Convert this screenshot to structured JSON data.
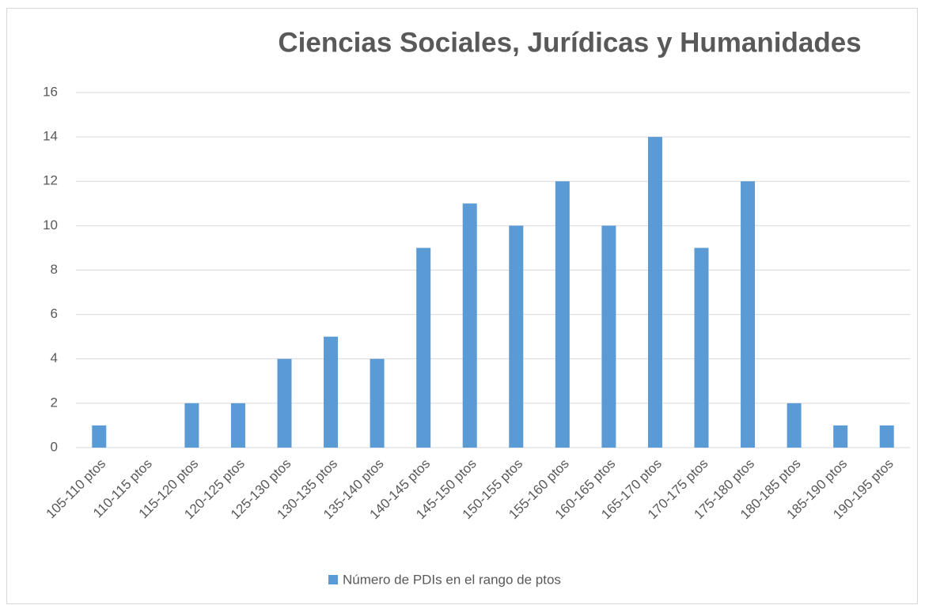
{
  "chart_data": {
    "type": "bar",
    "title": "Ciencias Sociales, Jurídicas y Humanidades",
    "categories": [
      "105-110 ptos",
      "110-115 ptos",
      "115-120 ptos",
      "120-125 ptos",
      "125-130 ptos",
      "130-135 ptos",
      "135-140 ptos",
      "140-145 ptos",
      "145-150 ptos",
      "150-155 ptos",
      "155-160 ptos",
      "160-165 ptos",
      "165-170 ptos",
      "170-175 ptos",
      "175-180 ptos",
      "180-185 ptos",
      "185-190 ptos",
      "190-195 ptos"
    ],
    "series": [
      {
        "name": "Número de PDIs en el rango de ptos",
        "color": "#5b9bd5",
        "values": [
          1,
          0,
          2,
          2,
          4,
          5,
          4,
          9,
          11,
          10,
          12,
          10,
          14,
          9,
          12,
          2,
          1,
          1
        ]
      }
    ],
    "ylim": [
      0,
      16
    ],
    "yticks": [
      0,
      2,
      4,
      6,
      8,
      10,
      12,
      14,
      16
    ],
    "grid": true,
    "legend": "bottom"
  }
}
